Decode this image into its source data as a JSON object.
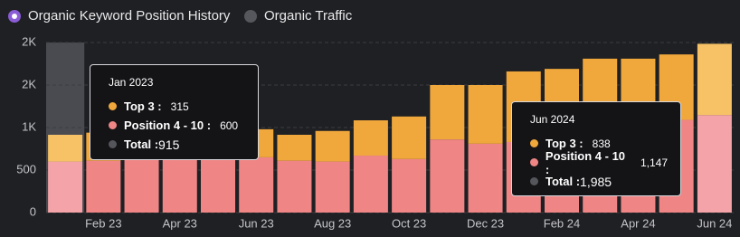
{
  "legend": [
    "Organic Keyword Position History",
    "Organic Traffic"
  ],
  "chart_data": {
    "type": "stacked_bar",
    "categories": [
      null,
      "Feb 23",
      null,
      "Apr 23",
      null,
      "Jun 23",
      null,
      "Aug 23",
      null,
      "Oct 23",
      null,
      "Dec 23",
      null,
      "Feb 24",
      null,
      "Apr 24",
      null,
      "Jun 24"
    ],
    "series": [
      {
        "color": "#ef8585",
        "values": [
          600,
          610,
          620,
          630,
          640,
          650,
          610,
          600,
          670,
          630,
          860,
          810,
          830,
          840,
          900,
          900,
          1090,
          1147
        ]
      },
      {
        "color": "#f0a83c",
        "values": [
          315,
          330,
          300,
          320,
          330,
          330,
          305,
          360,
          415,
          500,
          640,
          690,
          830,
          850,
          910,
          910,
          770,
          838
        ]
      }
    ],
    "ylim": [
      0,
      2000
    ],
    "yticks": [
      0,
      500,
      {
        "value": 1000,
        "label": "1K"
      },
      {
        "value": 1500,
        "label": "2K"
      },
      {
        "value": 2000,
        "label": "2K"
      }
    ],
    "grid": true
  },
  "tooltips": [
    {
      "title": "Jan 2023",
      "items": [
        {
          "label": "Top 3 :",
          "value": "315"
        },
        {
          "label": "Position 4 - 10 :",
          "value": "600"
        },
        {
          "label": "Total :",
          "value": "915"
        }
      ]
    },
    {
      "title": "Jun 2024",
      "items": [
        {
          "label": "Top 3 :",
          "value": "838"
        },
        {
          "label": "Position 4 - 10 :",
          "value": "1,147"
        },
        {
          "label": "Total :",
          "value": "1,985"
        }
      ]
    }
  ]
}
